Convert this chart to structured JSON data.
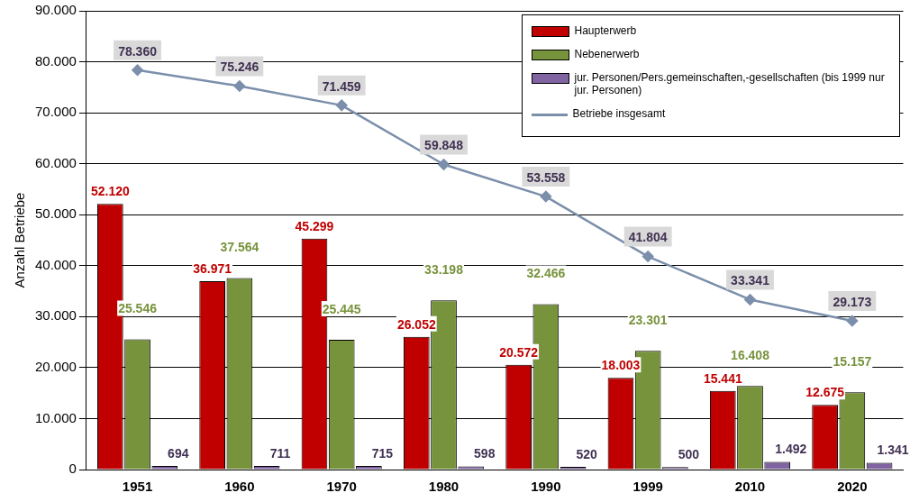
{
  "chart_data": {
    "type": "bar",
    "ylabel": "Anzahl Betriebe",
    "categories": [
      "1951",
      "1960",
      "1970",
      "1980",
      "1990",
      "1999",
      "2010",
      "2020"
    ],
    "series": [
      {
        "name": "Haupterwerb",
        "color": "#c00000",
        "values": [
          52120,
          36971,
          45299,
          26052,
          20572,
          18003,
          15441,
          12675
        ],
        "value_labels": [
          "52.120",
          "36.971",
          "45.299",
          "26.052",
          "20.572",
          "18.003",
          "15.441",
          "12.675"
        ]
      },
      {
        "name": "Nebenerwerb",
        "color": "#77933c",
        "values": [
          25546,
          37564,
          25445,
          33198,
          32466,
          23301,
          16408,
          15157
        ],
        "value_labels": [
          "25.546",
          "37.564",
          "25.445",
          "33.198",
          "32.466",
          "23.301",
          "16.408",
          "15.157"
        ]
      },
      {
        "name": "jur. Personen/Pers.gemeinschaften,-gesellschaften (bis 1999 nur jur. Personen)",
        "color": "#8064a2",
        "values": [
          694,
          711,
          715,
          598,
          520,
          500,
          1492,
          1341
        ],
        "value_labels": [
          "694",
          "711",
          "715",
          "598",
          "520",
          "500",
          "1.492",
          "1.341"
        ]
      },
      {
        "name": "Betriebe insgesamt",
        "type": "line",
        "color": "#7b8fab",
        "marker": "diamond",
        "values": [
          78360,
          75246,
          71459,
          59848,
          53558,
          41804,
          33341,
          29173
        ],
        "value_labels": [
          "78.360",
          "75.246",
          "71.459",
          "59.848",
          "53.558",
          "41.804",
          "33.341",
          "29.173"
        ]
      }
    ],
    "ylim": [
      0,
      90000
    ],
    "yticks": [
      {
        "value": 0,
        "label": "0"
      },
      {
        "value": 10000,
        "label": "10.000"
      },
      {
        "value": 20000,
        "label": "20.000"
      },
      {
        "value": 30000,
        "label": "30.000"
      },
      {
        "value": 40000,
        "label": "40.000"
      },
      {
        "value": 50000,
        "label": "50.000"
      },
      {
        "value": 60000,
        "label": "60.000"
      },
      {
        "value": 70000,
        "label": "70.000"
      },
      {
        "value": 80000,
        "label": "80.000"
      },
      {
        "value": 90000,
        "label": "90.000"
      }
    ],
    "grid": "y",
    "legend": "top right"
  }
}
